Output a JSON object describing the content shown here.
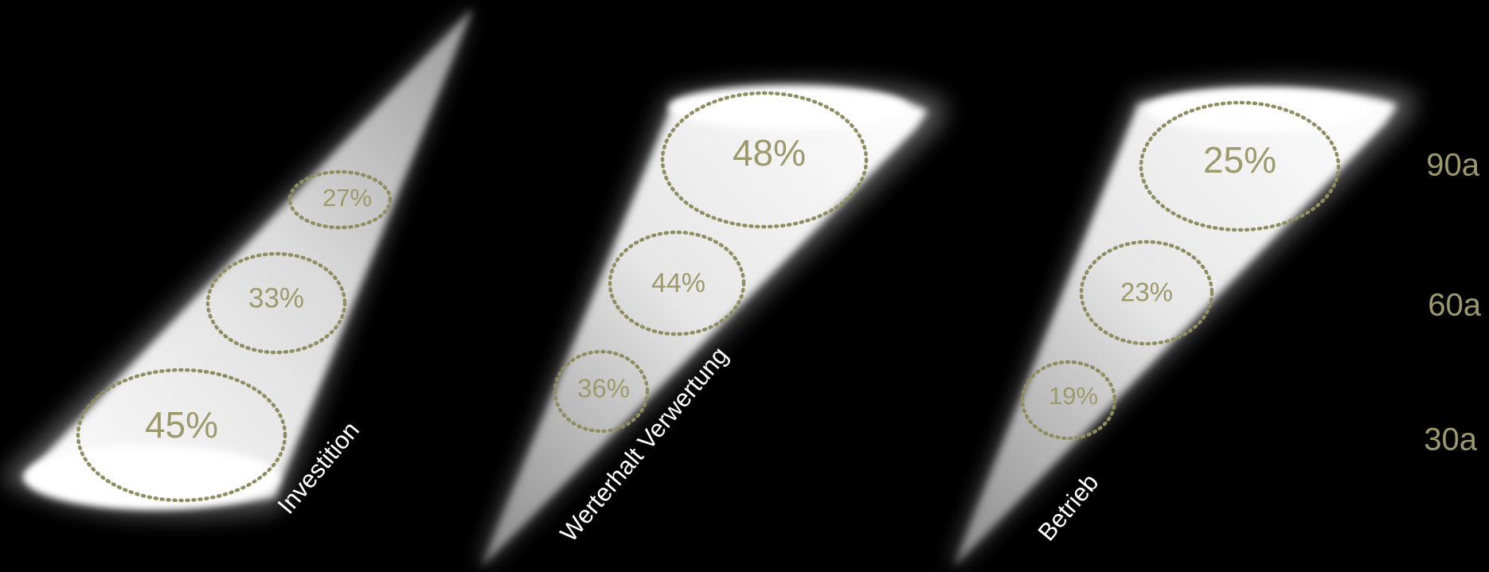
{
  "accent_color": "#9c9a6c",
  "label_color": "#ffffff",
  "cones": [
    {
      "label": "Investition",
      "values": [
        "45%",
        "33%",
        "27%"
      ]
    },
    {
      "label": "Werterhalt Verwertung",
      "values": [
        "36%",
        "44%",
        "48%"
      ]
    },
    {
      "label": "Betrieb",
      "values": [
        "19%",
        "23%",
        "25%"
      ]
    }
  ],
  "age_axis": [
    "30a",
    "60a",
    "90a"
  ]
}
